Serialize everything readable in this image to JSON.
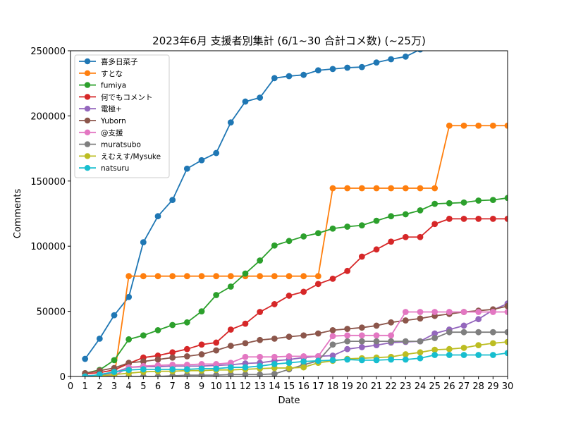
{
  "chart_data": {
    "type": "line",
    "title": "2023年6月 支援者別集計 (6/1~30 合計コメ数) (~25万)",
    "xlabel": "Date",
    "ylabel": "Comments",
    "xlim": [
      0,
      30
    ],
    "ylim": [
      0,
      250000
    ],
    "x_ticks": [
      "0",
      "1",
      "2",
      "3",
      "4",
      "5",
      "6",
      "7",
      "8",
      "9",
      "10",
      "11",
      "12",
      "13",
      "14",
      "15",
      "16",
      "17",
      "18",
      "19",
      "20",
      "21",
      "22",
      "23",
      "24",
      "25",
      "26",
      "27",
      "28",
      "29",
      "30"
    ],
    "y_ticks": [
      "0",
      "50000",
      "100000",
      "150000",
      "200000",
      "250000"
    ],
    "grid": false,
    "legend_position": "top-left",
    "x": [
      1,
      2,
      3,
      4,
      5,
      6,
      7,
      8,
      9,
      10,
      11,
      12,
      13,
      14,
      15,
      16,
      17,
      18,
      19,
      20,
      21,
      22,
      23,
      24,
      25,
      26,
      27,
      28,
      29,
      30
    ],
    "series": [
      {
        "name": "喜多日菜子",
        "color": "#1f77b4",
        "values": [
          13500,
          29000,
          47000,
          61000,
          103000,
          123000,
          135500,
          159500,
          166000,
          171500,
          195000,
          211000,
          214000,
          229000,
          230500,
          231500,
          235000,
          236000,
          237000,
          237500,
          241000,
          243500,
          245500,
          251000,
          255000,
          258000,
          260000,
          262000,
          264000,
          266000
        ]
      },
      {
        "name": "すとな",
        "color": "#ff7f0e",
        "values": [
          0,
          0,
          0,
          77000,
          77000,
          77000,
          77000,
          77000,
          77000,
          77000,
          77000,
          77000,
          77000,
          77000,
          77000,
          77000,
          77000,
          144500,
          144500,
          144500,
          144500,
          144500,
          144500,
          144500,
          144500,
          192500,
          192500,
          192500,
          192500,
          192500
        ]
      },
      {
        "name": "fumiya",
        "color": "#2ca02c",
        "values": [
          2500,
          5000,
          12500,
          28500,
          31500,
          35500,
          39500,
          41500,
          50000,
          62500,
          69000,
          79000,
          89000,
          100500,
          104000,
          107500,
          110000,
          113500,
          115000,
          116000,
          119500,
          123000,
          124500,
          127500,
          132500,
          133000,
          133500,
          135000,
          135500,
          137000
        ]
      },
      {
        "name": "何でもコメント",
        "color": "#d62728",
        "values": [
          2000,
          3000,
          5000,
          10000,
          14500,
          16000,
          18500,
          21000,
          24500,
          26000,
          36000,
          40500,
          49500,
          55500,
          62000,
          65000,
          71000,
          75000,
          81000,
          92000,
          97500,
          103500,
          107000,
          107000,
          117000,
          121000,
          121000,
          121000,
          121000,
          121000
        ]
      },
      {
        "name": "電極+",
        "color": "#9467bd",
        "values": [
          500,
          1000,
          3000,
          7000,
          7500,
          7500,
          8000,
          8000,
          8000,
          8500,
          9000,
          10000,
          10500,
          12000,
          13000,
          14500,
          15500,
          16000,
          21000,
          22500,
          24000,
          26000,
          26500,
          27000,
          33000,
          36000,
          39000,
          44000,
          51000,
          56000
        ]
      },
      {
        "name": "Yuborn",
        "color": "#8c564b",
        "values": [
          2500,
          4500,
          6500,
          10500,
          11500,
          13000,
          14500,
          15500,
          17000,
          20000,
          23500,
          25500,
          28000,
          29000,
          30500,
          31500,
          33000,
          35500,
          36500,
          37500,
          39000,
          41500,
          43000,
          44500,
          46500,
          48000,
          49500,
          50500,
          51500,
          54000
        ]
      },
      {
        "name": "@支援",
        "color": "#e377c2",
        "values": [
          0,
          0,
          500,
          7000,
          8000,
          8500,
          9000,
          9000,
          9500,
          9500,
          10500,
          15000,
          15000,
          15000,
          15500,
          15500,
          15500,
          31000,
          31500,
          31500,
          31500,
          31500,
          49500,
          49500,
          49500,
          49500,
          49500,
          49500,
          49500,
          49500
        ]
      },
      {
        "name": "muratsubo",
        "color": "#7f7f7f",
        "values": [
          0,
          0,
          0,
          0,
          0,
          0,
          500,
          1000,
          1000,
          1000,
          1500,
          1500,
          1500,
          2000,
          5500,
          9000,
          12000,
          24500,
          27000,
          27000,
          27000,
          27000,
          27000,
          27000,
          29500,
          34000,
          34000,
          34000,
          34000,
          34000
        ]
      },
      {
        "name": "えむえす/Mysuke",
        "color": "#bcbd22",
        "values": [
          0,
          500,
          1500,
          2500,
          3500,
          4000,
          4000,
          4500,
          4500,
          5000,
          5000,
          5500,
          6000,
          6500,
          6500,
          7000,
          10500,
          12000,
          13500,
          14000,
          14500,
          15000,
          17000,
          18500,
          20500,
          21000,
          22000,
          24000,
          25500,
          26500
        ]
      },
      {
        "name": "natsuru",
        "color": "#17becf",
        "values": [
          0,
          1500,
          3500,
          5000,
          5500,
          5500,
          5500,
          5500,
          6000,
          6000,
          7000,
          7000,
          8000,
          9500,
          10500,
          11500,
          12000,
          12500,
          13000,
          12500,
          12500,
          13000,
          13000,
          14000,
          16500,
          16500,
          16500,
          16500,
          16500,
          18000
        ]
      }
    ]
  }
}
